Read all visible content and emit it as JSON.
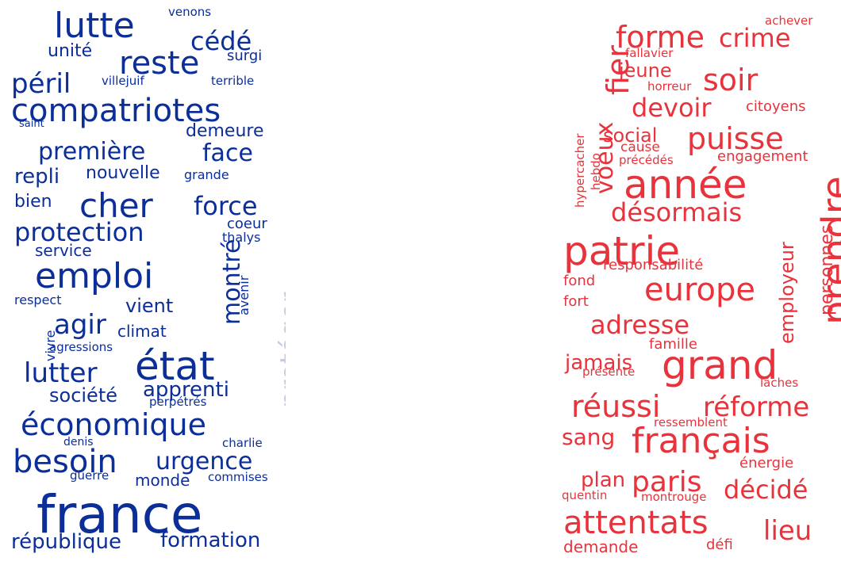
{
  "colors": {
    "left_primary": "#0b2e99",
    "left_faded": "#c2cbe3",
    "right_primary": "#e8333c"
  },
  "left_cloud": {
    "words": [
      {
        "text": "lutte",
        "color": "primary"
      },
      {
        "text": "venons",
        "color": "primary"
      },
      {
        "text": "cédé",
        "color": "primary"
      },
      {
        "text": "unité",
        "color": "primary"
      },
      {
        "text": "reste",
        "color": "primary"
      },
      {
        "text": "surgi",
        "color": "primary"
      },
      {
        "text": "péril",
        "color": "primary"
      },
      {
        "text": "villejuif",
        "color": "primary"
      },
      {
        "text": "terrible",
        "color": "primary"
      },
      {
        "text": "compatriotes",
        "color": "primary"
      },
      {
        "text": "saint",
        "color": "primary"
      },
      {
        "text": "demeure",
        "color": "primary"
      },
      {
        "text": "première",
        "color": "primary"
      },
      {
        "text": "face",
        "color": "primary"
      },
      {
        "text": "repli",
        "color": "primary"
      },
      {
        "text": "nouvelle",
        "color": "primary"
      },
      {
        "text": "grande",
        "color": "primary"
      },
      {
        "text": "bien",
        "color": "primary"
      },
      {
        "text": "cher",
        "color": "primary"
      },
      {
        "text": "force",
        "color": "primary"
      },
      {
        "text": "protection",
        "color": "primary"
      },
      {
        "text": "montré",
        "color": "primary"
      },
      {
        "text": "coeur",
        "color": "primary"
      },
      {
        "text": "thalys",
        "color": "primary"
      },
      {
        "text": "service",
        "color": "primary"
      },
      {
        "text": "emploi",
        "color": "primary"
      },
      {
        "text": "avenir",
        "color": "primary"
      },
      {
        "text": "protéger",
        "color": "faded"
      },
      {
        "text": "respect",
        "color": "primary"
      },
      {
        "text": "vient",
        "color": "primary"
      },
      {
        "text": "agir",
        "color": "primary"
      },
      {
        "text": "climat",
        "color": "primary"
      },
      {
        "text": "vivre",
        "color": "primary"
      },
      {
        "text": "agressions",
        "color": "primary"
      },
      {
        "text": "état",
        "color": "primary"
      },
      {
        "text": "lutter",
        "color": "primary"
      },
      {
        "text": "société",
        "color": "primary"
      },
      {
        "text": "apprenti",
        "color": "primary"
      },
      {
        "text": "perpétrés",
        "color": "primary"
      },
      {
        "text": "économique",
        "color": "primary"
      },
      {
        "text": "denis",
        "color": "primary"
      },
      {
        "text": "charlie",
        "color": "primary"
      },
      {
        "text": "besoin",
        "color": "primary"
      },
      {
        "text": "urgence",
        "color": "primary"
      },
      {
        "text": "guerre",
        "color": "primary"
      },
      {
        "text": "monde",
        "color": "primary"
      },
      {
        "text": "commises",
        "color": "primary"
      },
      {
        "text": "france",
        "color": "primary"
      },
      {
        "text": "république",
        "color": "primary"
      },
      {
        "text": "formation",
        "color": "primary"
      }
    ]
  },
  "right_cloud": {
    "words": [
      {
        "text": "achever",
        "color": "primary"
      },
      {
        "text": "forme",
        "color": "primary"
      },
      {
        "text": "crime",
        "color": "primary"
      },
      {
        "text": "fier",
        "color": "primary"
      },
      {
        "text": "fallavier",
        "color": "primary"
      },
      {
        "text": "jeune",
        "color": "primary"
      },
      {
        "text": "soir",
        "color": "primary"
      },
      {
        "text": "horreur",
        "color": "primary"
      },
      {
        "text": "devoir",
        "color": "primary"
      },
      {
        "text": "citoyens",
        "color": "primary"
      },
      {
        "text": "voeux",
        "color": "primary"
      },
      {
        "text": "social",
        "color": "primary"
      },
      {
        "text": "puisse",
        "color": "primary"
      },
      {
        "text": "cause",
        "color": "primary"
      },
      {
        "text": "précédés",
        "color": "primary"
      },
      {
        "text": "engagement",
        "color": "primary"
      },
      {
        "text": "hypercacher",
        "color": "primary"
      },
      {
        "text": "hebdo",
        "color": "primary"
      },
      {
        "text": "année",
        "color": "primary"
      },
      {
        "text": "prendre",
        "color": "primary"
      },
      {
        "text": "désormais",
        "color": "primary"
      },
      {
        "text": "personnes",
        "color": "primary"
      },
      {
        "text": "ensanglantée",
        "color": "primary"
      },
      {
        "text": "patrie",
        "color": "primary"
      },
      {
        "text": "employeur",
        "color": "primary"
      },
      {
        "text": "responsabilité",
        "color": "primary"
      },
      {
        "text": "fond",
        "color": "primary"
      },
      {
        "text": "europe",
        "color": "primary"
      },
      {
        "text": "fort",
        "color": "primary"
      },
      {
        "text": "adresse",
        "color": "primary"
      },
      {
        "text": "famille",
        "color": "primary"
      },
      {
        "text": "jamais",
        "color": "primary"
      },
      {
        "text": "grand",
        "color": "primary"
      },
      {
        "text": "présente",
        "color": "primary"
      },
      {
        "text": "lâches",
        "color": "primary"
      },
      {
        "text": "réussi",
        "color": "primary"
      },
      {
        "text": "réforme",
        "color": "primary"
      },
      {
        "text": "ressemblent",
        "color": "primary"
      },
      {
        "text": "sang",
        "color": "primary"
      },
      {
        "text": "français",
        "color": "primary"
      },
      {
        "text": "énergie",
        "color": "primary"
      },
      {
        "text": "plan",
        "color": "primary"
      },
      {
        "text": "paris",
        "color": "primary"
      },
      {
        "text": "décidé",
        "color": "primary"
      },
      {
        "text": "quentin",
        "color": "primary"
      },
      {
        "text": "montrouge",
        "color": "primary"
      },
      {
        "text": "attentats",
        "color": "primary"
      },
      {
        "text": "lieu",
        "color": "primary"
      },
      {
        "text": "demande",
        "color": "primary"
      },
      {
        "text": "défi",
        "color": "primary"
      }
    ]
  }
}
